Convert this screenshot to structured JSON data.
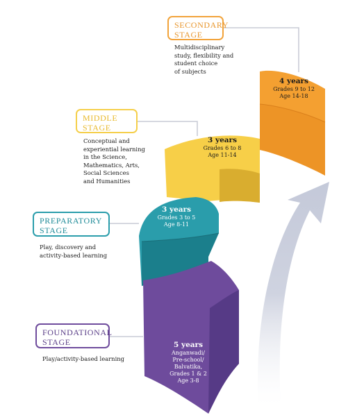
{
  "stages": [
    {
      "key": "secondary",
      "label_line1": "SECONDARY",
      "label_line2": "STAGE",
      "color": "#f2a33a",
      "description": [
        "Multidisciplinary",
        "study, flexibility and",
        "student choice",
        "of subjects"
      ],
      "years": "4 years",
      "details": [
        "Grades 9 to 12",
        "Age 14-18"
      ]
    },
    {
      "key": "middle",
      "label_line1": "MIDDLE",
      "label_line2": "STAGE",
      "color": "#f5cf4a",
      "description": [
        "Conceptual and",
        "experiential learning",
        "in the Science,",
        "Mathematics, Arts,",
        "Social Sciences",
        "and Humanities"
      ],
      "years": "3 years",
      "details": [
        "Grades 6 to 8",
        "Age 11-14"
      ]
    },
    {
      "key": "preparatory",
      "label_line1": "PREPARATORY",
      "label_line2": "STAGE",
      "color": "#2a9dab",
      "description": [
        "Play, discovery and",
        "activity-based learning"
      ],
      "years": "3 years",
      "details": [
        "Grades 3 to 5",
        "Age 8-11"
      ]
    },
    {
      "key": "foundational",
      "label_line1": "FOUNDATIONAL",
      "label_line2": "STAGE",
      "color": "#6e4b9c",
      "description": [
        "Play/activity-based learning"
      ],
      "years": "5 years",
      "details": [
        "Anganwadi/",
        "Pre-school/",
        "Balvatika,",
        "Grades 1 & 2",
        "Age 3-8"
      ]
    }
  ],
  "arrow_color": "#cfd3e0",
  "connector_color": "#c9ccd6"
}
